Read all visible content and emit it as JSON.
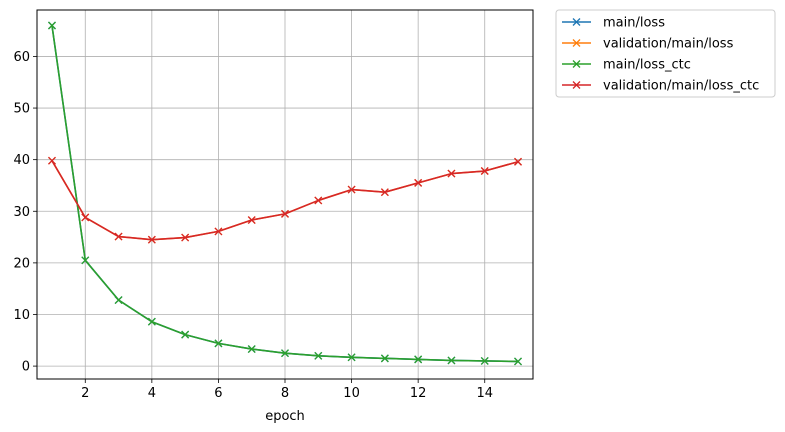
{
  "chart_data": {
    "type": "line",
    "title": "",
    "xlabel": "epoch",
    "ylabel": "",
    "xlim": [
      0.55,
      15.45
    ],
    "ylim": [
      -2.5,
      69.0
    ],
    "xticks": [
      2,
      4,
      6,
      8,
      10,
      12,
      14
    ],
    "yticks": [
      0,
      10,
      20,
      30,
      40,
      50,
      60
    ],
    "grid": true,
    "legend_position": "outside-top-right",
    "marker": "x",
    "x": [
      1,
      2,
      3,
      4,
      5,
      6,
      7,
      8,
      9,
      10,
      11,
      12,
      13,
      14,
      15
    ],
    "series": [
      {
        "name": "main/loss",
        "color": "#1f77b4",
        "values": [
          66.0,
          20.5,
          12.8,
          8.6,
          6.1,
          4.4,
          3.3,
          2.5,
          2.0,
          1.7,
          1.5,
          1.3,
          1.1,
          1.0,
          0.9
        ]
      },
      {
        "name": "validation/main/loss",
        "color": "#ff7f0e",
        "values": [
          39.8,
          28.8,
          25.1,
          24.5,
          24.9,
          26.1,
          28.3,
          29.5,
          32.1,
          34.2,
          33.7,
          35.5,
          37.3,
          37.8,
          39.6
        ]
      },
      {
        "name": "main/loss_ctc",
        "color": "#2ca02c",
        "values": [
          66.0,
          20.5,
          12.8,
          8.6,
          6.1,
          4.4,
          3.3,
          2.5,
          2.0,
          1.7,
          1.5,
          1.3,
          1.1,
          1.0,
          0.9
        ]
      },
      {
        "name": "validation/main/loss_ctc",
        "color": "#d62728",
        "values": [
          39.8,
          28.8,
          25.1,
          24.5,
          24.9,
          26.1,
          28.3,
          29.5,
          32.1,
          34.2,
          33.7,
          35.5,
          37.3,
          37.8,
          39.6
        ]
      }
    ]
  }
}
